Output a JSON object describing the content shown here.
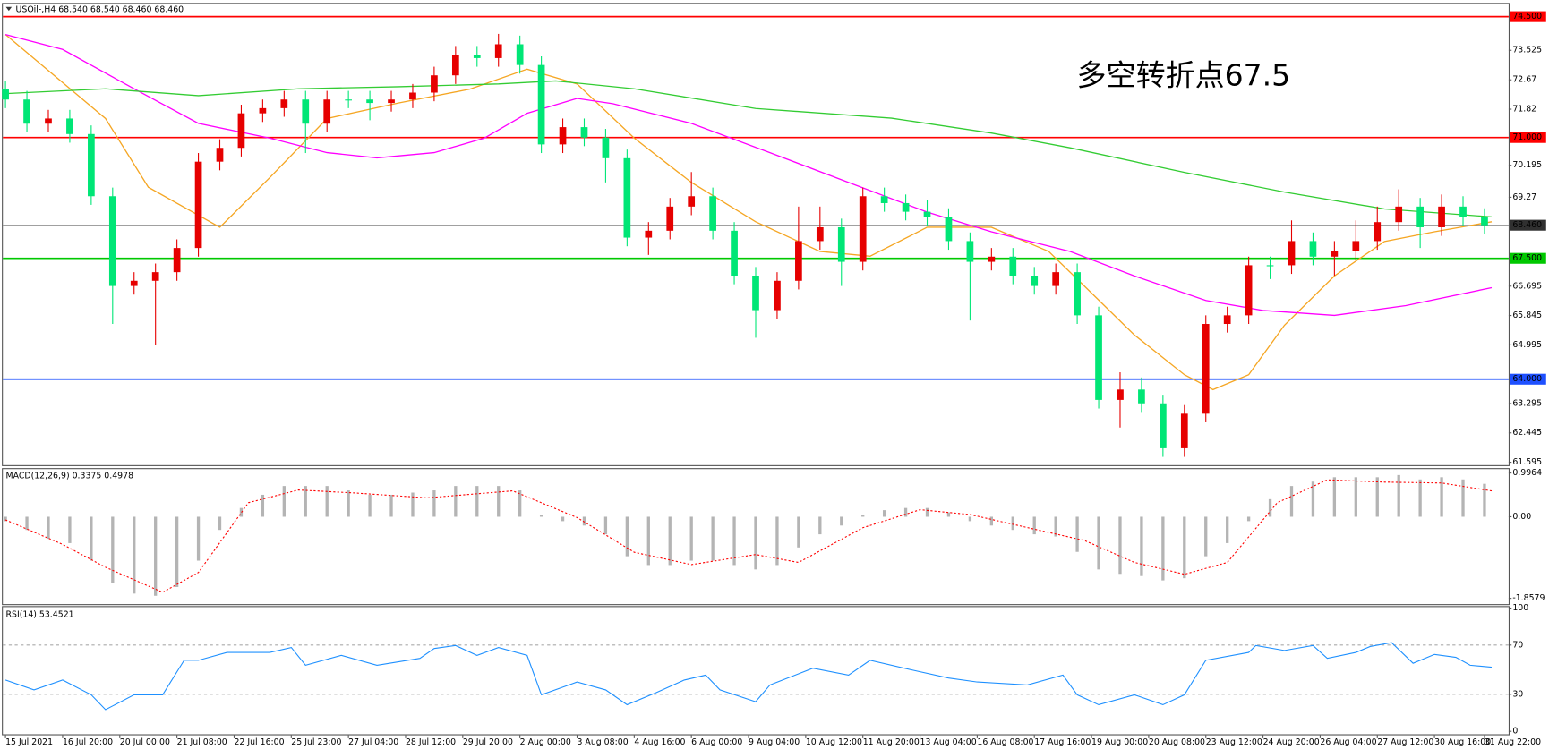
{
  "chart_data": [
    {
      "type": "candlestick",
      "title": "USOil-,H4  68.540 68.540 68.460 68.460",
      "annotation": {
        "text": "多空转折点67.5",
        "color": "#e8211a"
      },
      "up_color": "#e60000",
      "down_color": "#00e676",
      "xlim": [
        -0.5,
        209
      ],
      "ylim": [
        61.51,
        74.84
      ],
      "yticks": [
        73.525,
        72.67,
        71.82,
        70.195,
        69.27,
        66.695,
        65.845,
        64.995,
        63.295,
        62.445,
        61.595
      ],
      "levels": [
        {
          "value": 74.5,
          "label": "74.500",
          "color": "#ff0000"
        },
        {
          "value": 71,
          "label": "71.000",
          "color": "#ff0000"
        },
        {
          "value": 68.46,
          "label": "68.460",
          "color": "#808080"
        },
        {
          "value": 67.5,
          "label": "67.500",
          "color": "#00c800"
        },
        {
          "value": 64,
          "label": "64.000",
          "color": "#1e50ff"
        }
      ],
      "xticks": [
        {
          "value": 0,
          "label": "15 Jul 2021"
        },
        {
          "value": 8,
          "label": "16 Jul 20:00"
        },
        {
          "value": 16,
          "label": "20 Jul 00:00"
        },
        {
          "value": 24,
          "label": "21 Jul 08:00"
        },
        {
          "value": 32,
          "label": "22 Jul 16:00"
        },
        {
          "value": 40,
          "label": "25 Jul 23:00"
        },
        {
          "value": 48,
          "label": "27 Jul 04:00"
        },
        {
          "value": 56,
          "label": "28 Jul 12:00"
        },
        {
          "value": 64,
          "label": "29 Jul 20:00"
        },
        {
          "value": 72,
          "label": "2 Aug 00:00"
        },
        {
          "value": 80,
          "label": "3 Aug 08:00"
        },
        {
          "value": 88,
          "label": "4 Aug 16:00"
        },
        {
          "value": 96,
          "label": "6 Aug 00:00"
        },
        {
          "value": 104,
          "label": "9 Aug 04:00"
        },
        {
          "value": 112,
          "label": "10 Aug 12:00"
        },
        {
          "value": 120,
          "label": "11 Aug 20:00"
        },
        {
          "value": 128,
          "label": "13 Aug 04:00"
        },
        {
          "value": 136,
          "label": "16 Aug 08:00"
        },
        {
          "value": 144,
          "label": "17 Aug 16:00"
        },
        {
          "value": 152,
          "label": "19 Aug 00:00"
        },
        {
          "value": 160,
          "label": "20 Aug 08:00"
        },
        {
          "value": 168,
          "label": "23 Aug 12:00"
        },
        {
          "value": 176,
          "label": "24 Aug 20:00"
        },
        {
          "value": 184,
          "label": "26 Aug 04:00"
        },
        {
          "value": 192,
          "label": "27 Aug 12:00"
        },
        {
          "value": 200,
          "label": "30 Aug 16:00"
        },
        {
          "value": 207,
          "label": "31 Aug 22:00"
        }
      ],
      "x": [
        0,
        3,
        6,
        9,
        12,
        15,
        18,
        21,
        24,
        27,
        30,
        33,
        36,
        39,
        42,
        45,
        48,
        51,
        54,
        57,
        60,
        63,
        66,
        69,
        72,
        75,
        78,
        81,
        84,
        87,
        90,
        93,
        96,
        99,
        102,
        105,
        108,
        111,
        114,
        117,
        120,
        123,
        126,
        129,
        132,
        135,
        138,
        141,
        144,
        147,
        150,
        153,
        156,
        159,
        162,
        165,
        168,
        171,
        174,
        177,
        180,
        183,
        186,
        189,
        192,
        195,
        198,
        201,
        204,
        207
      ],
      "open": [
        72.4,
        72.1,
        71.4,
        71.55,
        71.1,
        69.3,
        66.7,
        66.85,
        67.1,
        67.8,
        70.3,
        70.7,
        71.7,
        71.85,
        72.1,
        71.4,
        72.1,
        72.1,
        72.0,
        72.1,
        72.3,
        72.8,
        73.4,
        73.3,
        73.7,
        73.1,
        70.8,
        71.3,
        71.0,
        70.4,
        68.1,
        68.3,
        69.0,
        69.3,
        68.3,
        67.0,
        66.0,
        66.85,
        68.0,
        68.4,
        67.4,
        69.3,
        69.1,
        68.85,
        68.7,
        68.0,
        67.4,
        67.55,
        67.0,
        66.7,
        67.1,
        65.85,
        63.4,
        63.7,
        63.3,
        62.0,
        63.0,
        65.6,
        65.85,
        67.3,
        67.3,
        68.0,
        67.55,
        67.7,
        68.0,
        68.55,
        69.0,
        68.4,
        69.0,
        68.7
      ],
      "high": [
        72.65,
        72.35,
        71.8,
        71.8,
        71.35,
        69.55,
        67.1,
        67.35,
        68.05,
        70.55,
        70.95,
        71.95,
        72.1,
        72.35,
        72.35,
        72.35,
        72.35,
        72.35,
        72.35,
        72.55,
        73.05,
        73.65,
        73.65,
        74.0,
        73.95,
        73.35,
        71.55,
        71.55,
        71.25,
        70.65,
        68.55,
        69.25,
        70.0,
        69.55,
        68.55,
        67.25,
        67.1,
        69.0,
        69.0,
        68.65,
        69.55,
        69.55,
        69.35,
        69.2,
        68.95,
        68.25,
        67.8,
        67.8,
        67.25,
        67.35,
        67.35,
        66.1,
        64.2,
        64.05,
        63.55,
        63.25,
        65.85,
        66.1,
        67.55,
        67.55,
        68.6,
        68.25,
        68.0,
        68.6,
        69.0,
        69.5,
        69.25,
        69.35,
        69.3,
        68.95
      ],
      "low": [
        71.85,
        71.15,
        71.15,
        70.85,
        69.05,
        65.6,
        66.45,
        65.0,
        66.85,
        67.55,
        70.05,
        70.45,
        71.45,
        71.6,
        70.55,
        71.15,
        71.85,
        71.5,
        71.75,
        71.85,
        72.05,
        72.55,
        73.05,
        73.05,
        72.85,
        70.55,
        70.55,
        70.75,
        69.7,
        67.85,
        67.6,
        68.05,
        68.75,
        68.05,
        66.75,
        65.2,
        65.75,
        66.6,
        67.75,
        66.7,
        67.15,
        68.85,
        68.6,
        68.45,
        67.75,
        65.7,
        67.15,
        66.75,
        66.45,
        66.45,
        65.6,
        63.15,
        62.6,
        63.05,
        61.75,
        61.75,
        62.75,
        65.35,
        65.6,
        66.9,
        67.05,
        67.3,
        67.0,
        67.45,
        67.75,
        68.3,
        67.8,
        68.15,
        68.45,
        68.21
      ],
      "close": [
        72.1,
        71.4,
        71.55,
        71.1,
        69.3,
        66.7,
        66.85,
        67.1,
        67.8,
        70.3,
        70.7,
        71.7,
        71.85,
        72.1,
        71.4,
        72.1,
        72.1,
        72.0,
        72.1,
        72.3,
        72.8,
        73.4,
        73.3,
        73.7,
        73.1,
        70.8,
        71.3,
        71.0,
        70.4,
        68.1,
        68.3,
        69.0,
        69.3,
        68.3,
        67.0,
        66.0,
        66.85,
        68.0,
        68.4,
        67.4,
        69.3,
        69.1,
        68.85,
        68.7,
        68.0,
        67.4,
        67.55,
        67.0,
        66.7,
        67.1,
        65.85,
        63.4,
        63.7,
        63.3,
        62.0,
        63.0,
        65.6,
        65.85,
        67.3,
        67.3,
        68.0,
        67.55,
        67.7,
        68.0,
        68.55,
        69.0,
        68.4,
        69.0,
        68.7,
        68.46
      ],
      "moving_averages": [
        {
          "color": "#f5a623",
          "x": [
            0,
            14,
            20,
            30,
            37,
            45,
            55,
            65,
            73,
            80,
            88,
            96,
            105,
            114,
            121,
            129,
            138,
            146,
            151,
            158,
            165,
            169,
            174,
            179,
            186,
            193,
            200,
            208
          ],
          "values": [
            73.98,
            71.55,
            69.56,
            68.4,
            69.84,
            71.55,
            72.0,
            72.4,
            72.98,
            72.55,
            70.98,
            69.7,
            68.56,
            67.7,
            67.56,
            68.4,
            68.4,
            67.7,
            66.7,
            65.28,
            64.13,
            63.7,
            64.13,
            65.56,
            66.99,
            67.99,
            68.27,
            68.56
          ]
        },
        {
          "color": "#ff00ff",
          "x": [
            0,
            8,
            18,
            27,
            37,
            45,
            52,
            60,
            67,
            73,
            80,
            85,
            96,
            107,
            118,
            129,
            138,
            149,
            158,
            168,
            176,
            186,
            196,
            208
          ],
          "values": [
            73.98,
            73.55,
            72.41,
            71.41,
            70.98,
            70.56,
            70.41,
            70.56,
            70.98,
            71.7,
            72.13,
            71.98,
            71.41,
            70.56,
            69.7,
            68.84,
            68.27,
            67.7,
            66.99,
            66.28,
            65.99,
            65.85,
            66.13,
            66.65
          ]
        },
        {
          "color": "#33cc33",
          "x": [
            0,
            14,
            27,
            41,
            55,
            69,
            77,
            88,
            105,
            124,
            138,
            149,
            165,
            179,
            193,
            208
          ],
          "values": [
            72.27,
            72.41,
            72.21,
            72.41,
            72.47,
            72.55,
            72.64,
            72.41,
            71.84,
            71.56,
            71.13,
            70.7,
            69.99,
            69.42,
            68.93,
            68.7
          ]
        }
      ]
    },
    {
      "type": "macd",
      "title": "MACD(12,26,9) 0.3375 0.4978",
      "ylim": [
        -1.99,
        1.063
      ],
      "yticks": [
        0.9964,
        {
          "value": 0,
          "label": "0.00"
        },
        -1.8579
      ],
      "histogram": {
        "color": "#b4b4b4",
        "values": [
          -0.1,
          -0.3,
          -0.5,
          -0.6,
          -1.0,
          -1.5,
          -1.75,
          -1.8,
          -1.6,
          -1.0,
          -0.3,
          0.2,
          0.5,
          0.7,
          0.7,
          0.7,
          0.6,
          0.5,
          0.5,
          0.55,
          0.6,
          0.7,
          0.7,
          0.7,
          0.6,
          0.05,
          -0.1,
          -0.2,
          -0.4,
          -0.9,
          -1.1,
          -1.1,
          -1.0,
          -1.0,
          -1.1,
          -1.2,
          -1.1,
          -0.7,
          -0.4,
          -0.2,
          0.05,
          0.15,
          0.2,
          0.2,
          0.1,
          -0.1,
          -0.2,
          -0.3,
          -0.4,
          -0.45,
          -0.8,
          -1.2,
          -1.3,
          -1.35,
          -1.45,
          -1.4,
          -0.9,
          -0.6,
          -0.1,
          0.4,
          0.7,
          0.8,
          0.9,
          0.9,
          0.9,
          0.95,
          0.85,
          0.9,
          0.85,
          0.75
        ]
      },
      "signal": {
        "color": "#ff0000",
        "x": [
          0,
          8,
          14,
          22,
          27,
          34,
          41,
          49,
          59,
          71,
          80,
          88,
          96,
          105,
          111,
          120,
          128,
          135,
          145,
          151,
          158,
          165,
          171,
          178,
          185,
          193,
          201,
          208
        ],
        "values": [
          -0.07,
          -0.63,
          -1.15,
          -1.72,
          -1.27,
          0.32,
          0.61,
          0.54,
          0.43,
          0.59,
          -0.02,
          -0.81,
          -1.09,
          -0.86,
          -1.04,
          -0.25,
          0.16,
          0.05,
          -0.32,
          -0.54,
          -1.04,
          -1.31,
          -1.04,
          0.32,
          0.84,
          0.79,
          0.77,
          0.59
        ]
      }
    },
    {
      "type": "line",
      "title": "RSI(14) 53.4521",
      "ylim": [
        0,
        100
      ],
      "yticks": [
        100,
        70,
        30,
        0
      ],
      "levels": [
        70,
        30
      ],
      "series": [
        {
          "color": "#1e90ff",
          "x": [
            0,
            4,
            8,
            12,
            14,
            18,
            22,
            25,
            27,
            31,
            37,
            40,
            42,
            47,
            52,
            58,
            60,
            63,
            66,
            69,
            73,
            75,
            80,
            84,
            87,
            91,
            95,
            98,
            100,
            105,
            107,
            113,
            118,
            121,
            127,
            132,
            136,
            143,
            148,
            150,
            153,
            158,
            162,
            165,
            168,
            174,
            175,
            179,
            183,
            185,
            189,
            191,
            194,
            197,
            200,
            203,
            205,
            208
          ],
          "values": [
            41.6,
            33.6,
            41.6,
            29.6,
            17.6,
            29.6,
            29.6,
            57.6,
            57.6,
            64.0,
            64.0,
            68.0,
            53.6,
            61.6,
            53.6,
            59.2,
            67.2,
            69.6,
            61.6,
            68.0,
            61.6,
            29.6,
            40.0,
            33.6,
            21.6,
            31.2,
            41.6,
            45.6,
            33.6,
            24.0,
            37.6,
            51.2,
            45.6,
            57.6,
            49.6,
            43.2,
            40.0,
            37.6,
            45.6,
            29.6,
            21.6,
            29.6,
            21.6,
            29.6,
            57.6,
            64.0,
            69.6,
            65.6,
            69.6,
            59.2,
            64.0,
            68.8,
            72.0,
            55.2,
            62.4,
            60.0,
            53.6,
            52.0
          ]
        }
      ]
    }
  ]
}
